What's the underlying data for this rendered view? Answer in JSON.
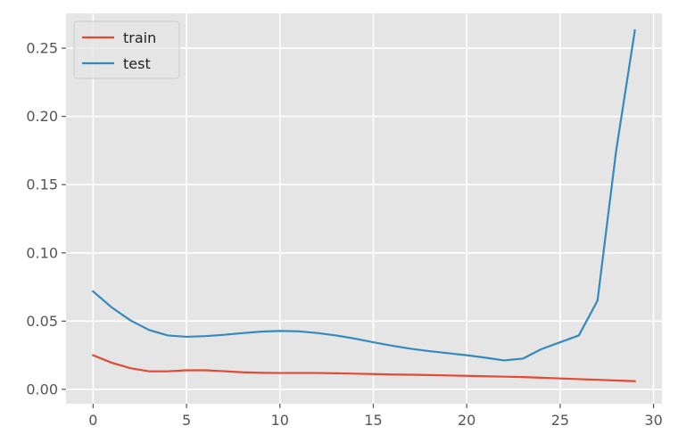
{
  "chart_data": {
    "type": "line",
    "title": "",
    "xlabel": "",
    "ylabel": "",
    "x": [
      0,
      1,
      2,
      3,
      4,
      5,
      6,
      7,
      8,
      9,
      10,
      11,
      12,
      13,
      14,
      15,
      16,
      17,
      18,
      19,
      20,
      21,
      22,
      23,
      24,
      25,
      26,
      27,
      28,
      29
    ],
    "xlim": [
      -1.45,
      30.45
    ],
    "ylim": [
      -0.0105,
      0.2755
    ],
    "xticks": [
      0,
      5,
      10,
      15,
      20,
      25,
      30
    ],
    "xtick_labels": [
      "0",
      "5",
      "10",
      "15",
      "20",
      "25",
      "30"
    ],
    "yticks": [
      0.0,
      0.05,
      0.1,
      0.15,
      0.2,
      0.25
    ],
    "ytick_labels": [
      "0.00",
      "0.05",
      "0.10",
      "0.15",
      "0.20",
      "0.25"
    ],
    "grid": true,
    "legend_position": "top-left",
    "series": [
      {
        "name": "train",
        "color": "#E24A33",
        "values": [
          0.025,
          0.0195,
          0.0155,
          0.0132,
          0.0132,
          0.014,
          0.014,
          0.0133,
          0.0125,
          0.0121,
          0.012,
          0.012,
          0.012,
          0.0118,
          0.0115,
          0.0112,
          0.0109,
          0.0107,
          0.0105,
          0.0102,
          0.0099,
          0.0096,
          0.0093,
          0.009,
          0.0085,
          0.008,
          0.0075,
          0.007,
          0.0065,
          0.006
        ]
      },
      {
        "name": "test",
        "color": "#348ABD",
        "values": [
          0.0718,
          0.06,
          0.0505,
          0.0435,
          0.0395,
          0.0385,
          0.039,
          0.04,
          0.0412,
          0.0423,
          0.0428,
          0.0425,
          0.0413,
          0.0395,
          0.0372,
          0.0345,
          0.032,
          0.0298,
          0.028,
          0.0265,
          0.025,
          0.0232,
          0.0212,
          0.0225,
          0.0295,
          0.0345,
          0.0395,
          0.065,
          0.175,
          0.263
        ]
      }
    ]
  }
}
